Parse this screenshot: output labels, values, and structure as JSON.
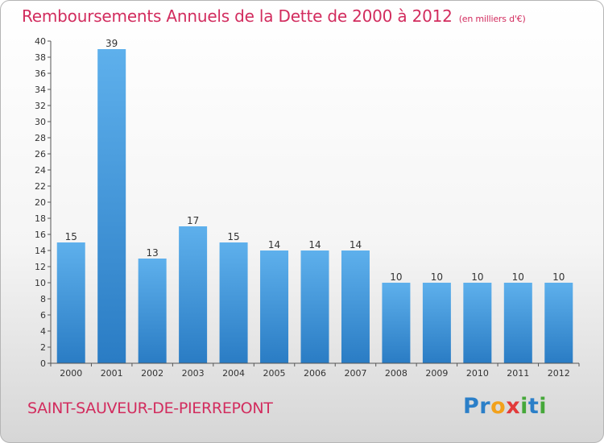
{
  "header": {
    "title": "Remboursements Annuels de la Dette de 2000 à 2012",
    "unit": "(en milliers d'€)"
  },
  "footer": {
    "city": "SAINT-SAUVEUR-DE-PIERREPONT",
    "logo": [
      "P",
      "r",
      "o",
      "x",
      "i",
      "t",
      "i"
    ]
  },
  "colors": {
    "bar_top": "#5eb0ec",
    "bar_bottom": "#2a7cc4",
    "title": "#d22c5e",
    "axis": "#555555"
  },
  "chart_data": {
    "type": "bar",
    "categories": [
      "2000",
      "2001",
      "2002",
      "2003",
      "2004",
      "2005",
      "2006",
      "2007",
      "2008",
      "2009",
      "2010",
      "2011",
      "2012"
    ],
    "values": [
      15,
      39,
      13,
      17,
      15,
      14,
      14,
      14,
      10,
      10,
      10,
      10,
      10
    ],
    "ylim": [
      0,
      40
    ],
    "yticks": [
      0,
      2,
      4,
      6,
      8,
      10,
      12,
      14,
      16,
      18,
      20,
      22,
      24,
      26,
      28,
      30,
      32,
      34,
      36,
      38,
      40
    ],
    "grid": false,
    "data_labels": true
  }
}
